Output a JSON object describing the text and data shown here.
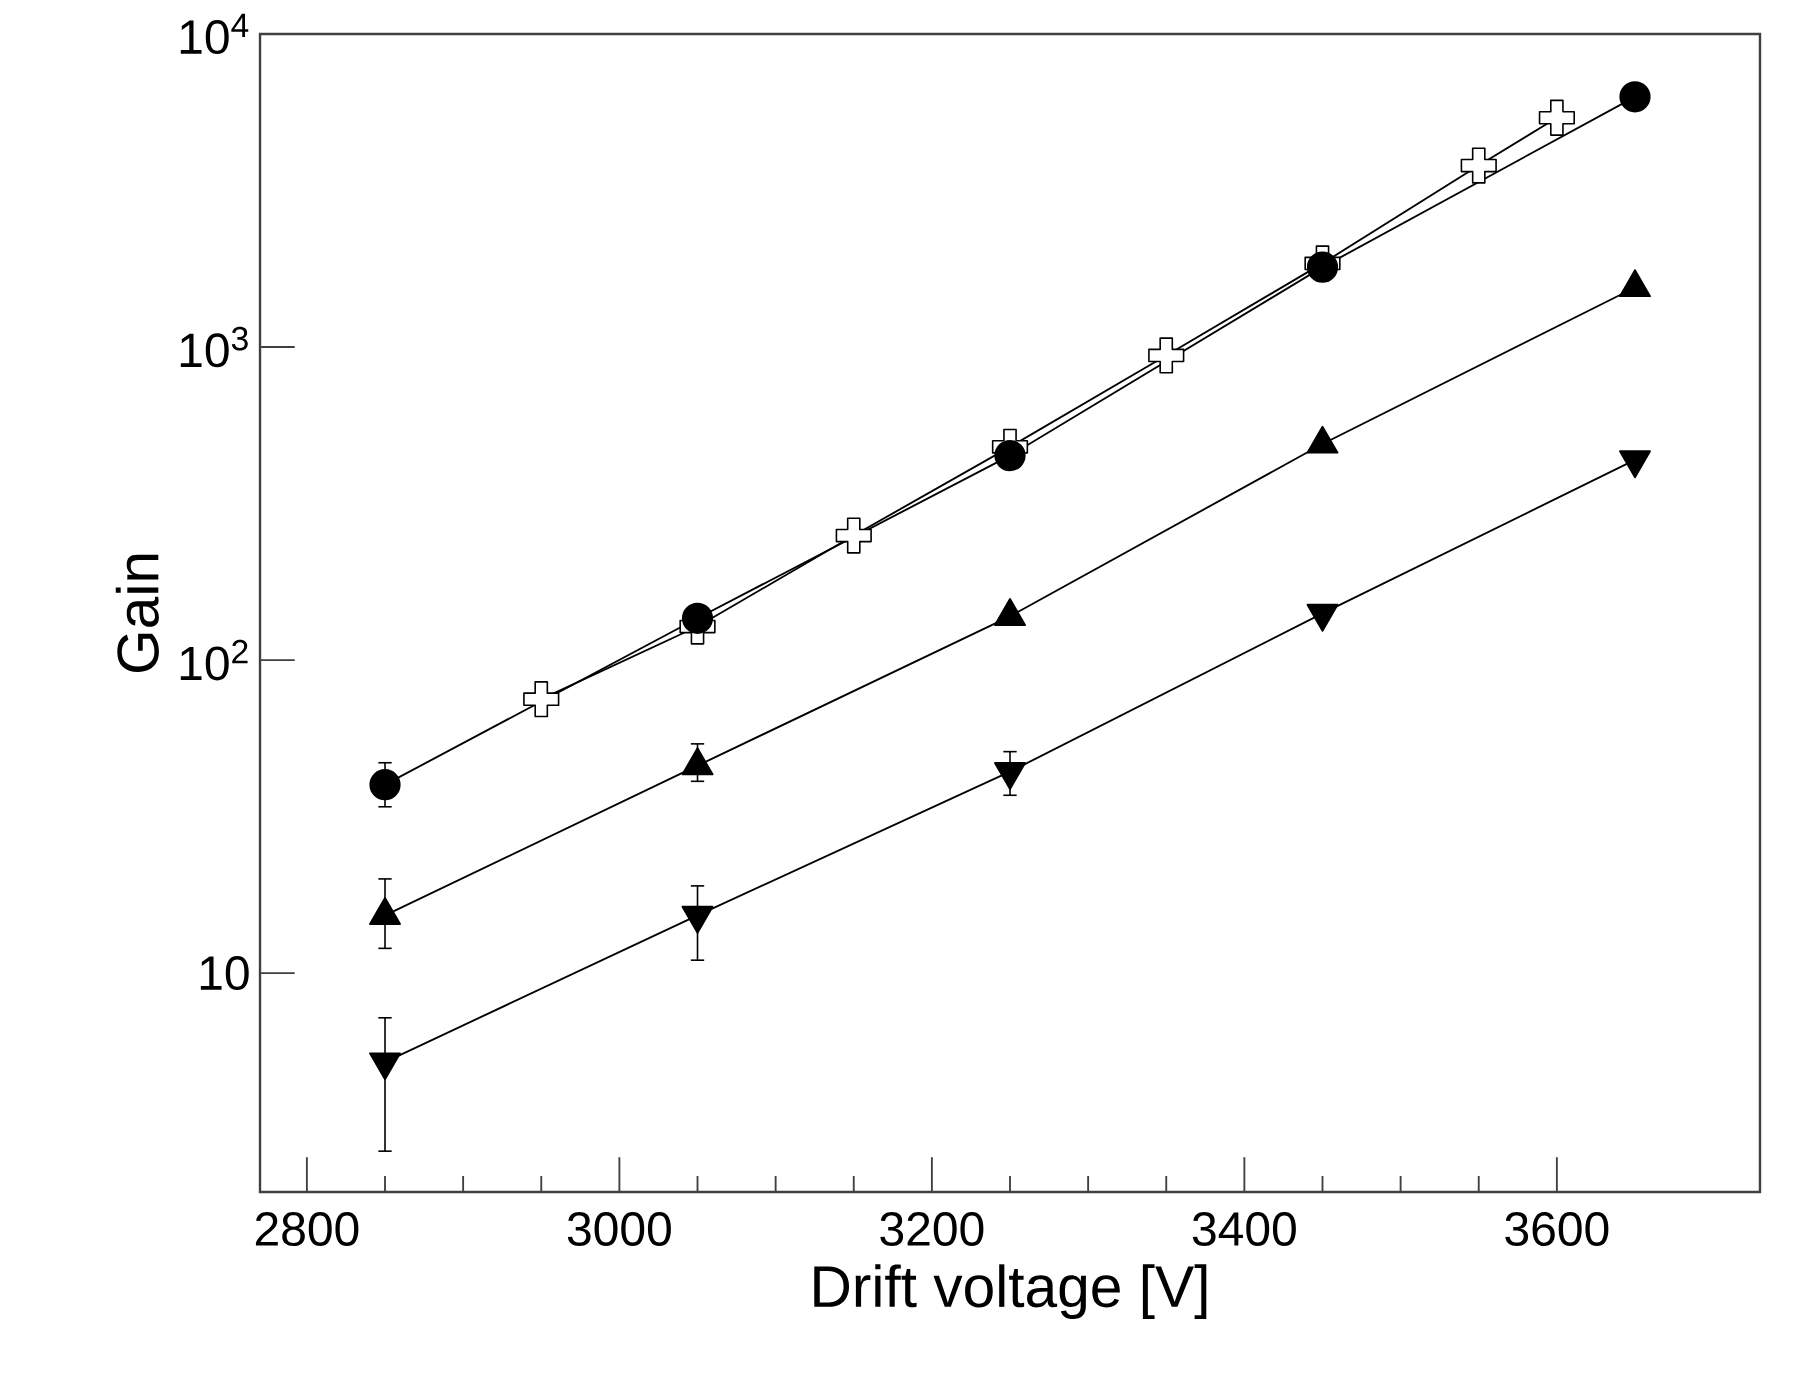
{
  "chart_data": {
    "type": "line",
    "xlabel": "Drift voltage [V]",
    "ylabel": "Gain",
    "log": "y",
    "xlim": [
      2770,
      3730
    ],
    "xticks": [
      2800,
      3000,
      3200,
      3400,
      3600
    ],
    "ylim": [
      2,
      10000
    ],
    "yticks": [
      10,
      {
        "value": 100,
        "label": "10$^{2}$"
      },
      {
        "value": 1000,
        "label": "10$^{3}$"
      },
      {
        "value": 10000,
        "label": "10$^{4}$"
      }
    ],
    "series": [
      {
        "color": "#000000",
        "marker": "circle",
        "x": [
          2850,
          3050,
          3250,
          3450,
          3650
        ],
        "values": [
          40,
          136,
          450,
          1800,
          6300
        ],
        "errors": [
          [
            34,
            47
          ],
          null,
          null,
          null,
          null
        ]
      },
      {
        "color": "#000000",
        "marker": "cross",
        "x": [
          2950,
          3050,
          3150,
          3250,
          3350,
          3450,
          3550,
          3600
        ],
        "values": [
          75,
          128,
          250,
          480,
          940,
          1850,
          3800,
          5400
        ]
      },
      {
        "color": "#000000",
        "marker": "triangle",
        "x": [
          2850,
          3050,
          3250,
          3450,
          3650
        ],
        "values": [
          15.3,
          46,
          138,
          490,
          1550
        ],
        "errors": [
          [
            12,
            20
          ],
          [
            41,
            54
          ],
          null,
          null,
          null
        ]
      },
      {
        "color": "#000000",
        "marker": "triangle_down",
        "x": [
          2850,
          3050,
          3250,
          3450,
          3650
        ],
        "values": [
          5.2,
          15.3,
          44,
          141,
          436
        ],
        "errors": [
          [
            2.7,
            7.2
          ],
          [
            11,
            19
          ],
          [
            37,
            51
          ],
          null,
          null
        ]
      }
    ]
  }
}
